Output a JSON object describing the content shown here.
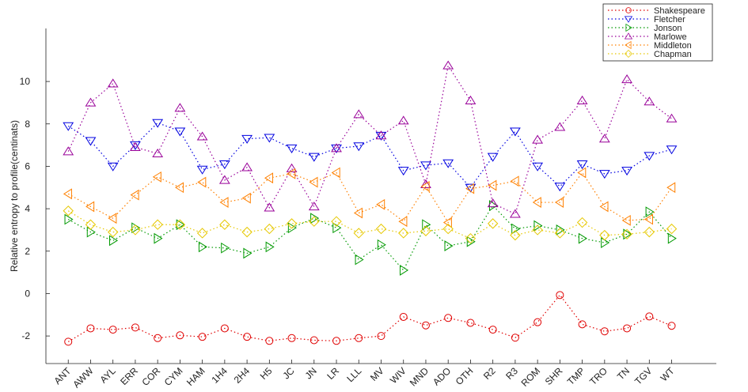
{
  "chart_data": {
    "type": "line",
    "ylabel": "Relative entropy to profile(centinats)",
    "categories": [
      "ANT",
      "AWW",
      "AYL",
      "ERR",
      "COR",
      "CYM",
      "HAM",
      "1H4",
      "2H4",
      "H5",
      "JC",
      "JN",
      "LR",
      "LLL",
      "MV",
      "WIV",
      "MND",
      "ADO",
      "OTH",
      "R2",
      "R3",
      "ROM",
      "SHR",
      "TMP",
      "TRO",
      "TN",
      "TGV",
      "WT"
    ],
    "ylim": [
      -3.3,
      12.5
    ],
    "yticks": [
      -2,
      0,
      2,
      4,
      6,
      8,
      10
    ],
    "legend": "northeast",
    "series": [
      {
        "name": "Shakespeare",
        "color": "#e00000",
        "marker": "circle",
        "values": [
          -2.27,
          -1.64,
          -1.7,
          -1.6,
          -2.1,
          -1.97,
          -2.04,
          -1.64,
          -2.04,
          -2.23,
          -2.1,
          -2.2,
          -2.23,
          -2.1,
          -2.0,
          -1.1,
          -1.5,
          -1.15,
          -1.38,
          -1.7,
          -2.08,
          -1.35,
          -0.07,
          -1.45,
          -1.78,
          -1.64,
          -1.08,
          -1.52
        ]
      },
      {
        "name": "Fletcher",
        "color": "#0000e0",
        "marker": "triangle-down",
        "values": [
          7.9,
          7.2,
          6.0,
          7.0,
          8.05,
          7.65,
          5.85,
          6.1,
          7.3,
          7.35,
          6.85,
          6.45,
          6.85,
          6.95,
          7.45,
          5.8,
          6.05,
          6.15,
          5.0,
          6.45,
          7.65,
          6.0,
          5.05,
          6.1,
          5.65,
          5.8,
          6.5,
          6.8
        ]
      },
      {
        "name": "Jonson",
        "color": "#009900",
        "marker": "triangle-right",
        "values": [
          3.5,
          2.9,
          2.5,
          3.1,
          2.6,
          3.25,
          2.2,
          2.15,
          1.9,
          2.2,
          3.1,
          3.55,
          3.1,
          1.6,
          2.3,
          1.1,
          3.25,
          2.25,
          2.45,
          4.15,
          3.05,
          3.2,
          3.0,
          2.6,
          2.4,
          2.8,
          3.85,
          2.6
        ]
      },
      {
        "name": "Marlowe",
        "color": "#990099",
        "marker": "triangle-up",
        "values": [
          6.7,
          9.0,
          9.9,
          6.9,
          6.6,
          8.75,
          7.4,
          5.35,
          5.95,
          4.05,
          5.9,
          4.1,
          6.85,
          8.45,
          7.45,
          8.15,
          5.15,
          10.75,
          9.1,
          4.25,
          3.75,
          7.25,
          7.85,
          9.1,
          7.3,
          10.1,
          9.05,
          8.25
        ]
      },
      {
        "name": "Middleton",
        "color": "#ff8000",
        "marker": "triangle-left",
        "values": [
          4.7,
          4.1,
          3.55,
          4.65,
          5.5,
          5.0,
          5.25,
          4.3,
          4.5,
          5.45,
          5.65,
          5.25,
          5.7,
          3.8,
          4.2,
          3.4,
          5.05,
          3.35,
          4.95,
          5.1,
          5.3,
          4.3,
          4.3,
          5.7,
          4.1,
          3.45,
          3.5,
          5.0
        ]
      },
      {
        "name": "Chapman",
        "color": "#e6c800",
        "marker": "diamond",
        "values": [
          3.9,
          3.25,
          2.9,
          3.0,
          3.25,
          3.25,
          2.85,
          3.25,
          2.9,
          3.05,
          3.3,
          3.4,
          3.4,
          2.85,
          3.05,
          2.85,
          2.95,
          3.05,
          2.6,
          3.3,
          2.75,
          3.0,
          2.85,
          3.35,
          2.75,
          2.8,
          2.9,
          3.05
        ]
      }
    ]
  }
}
